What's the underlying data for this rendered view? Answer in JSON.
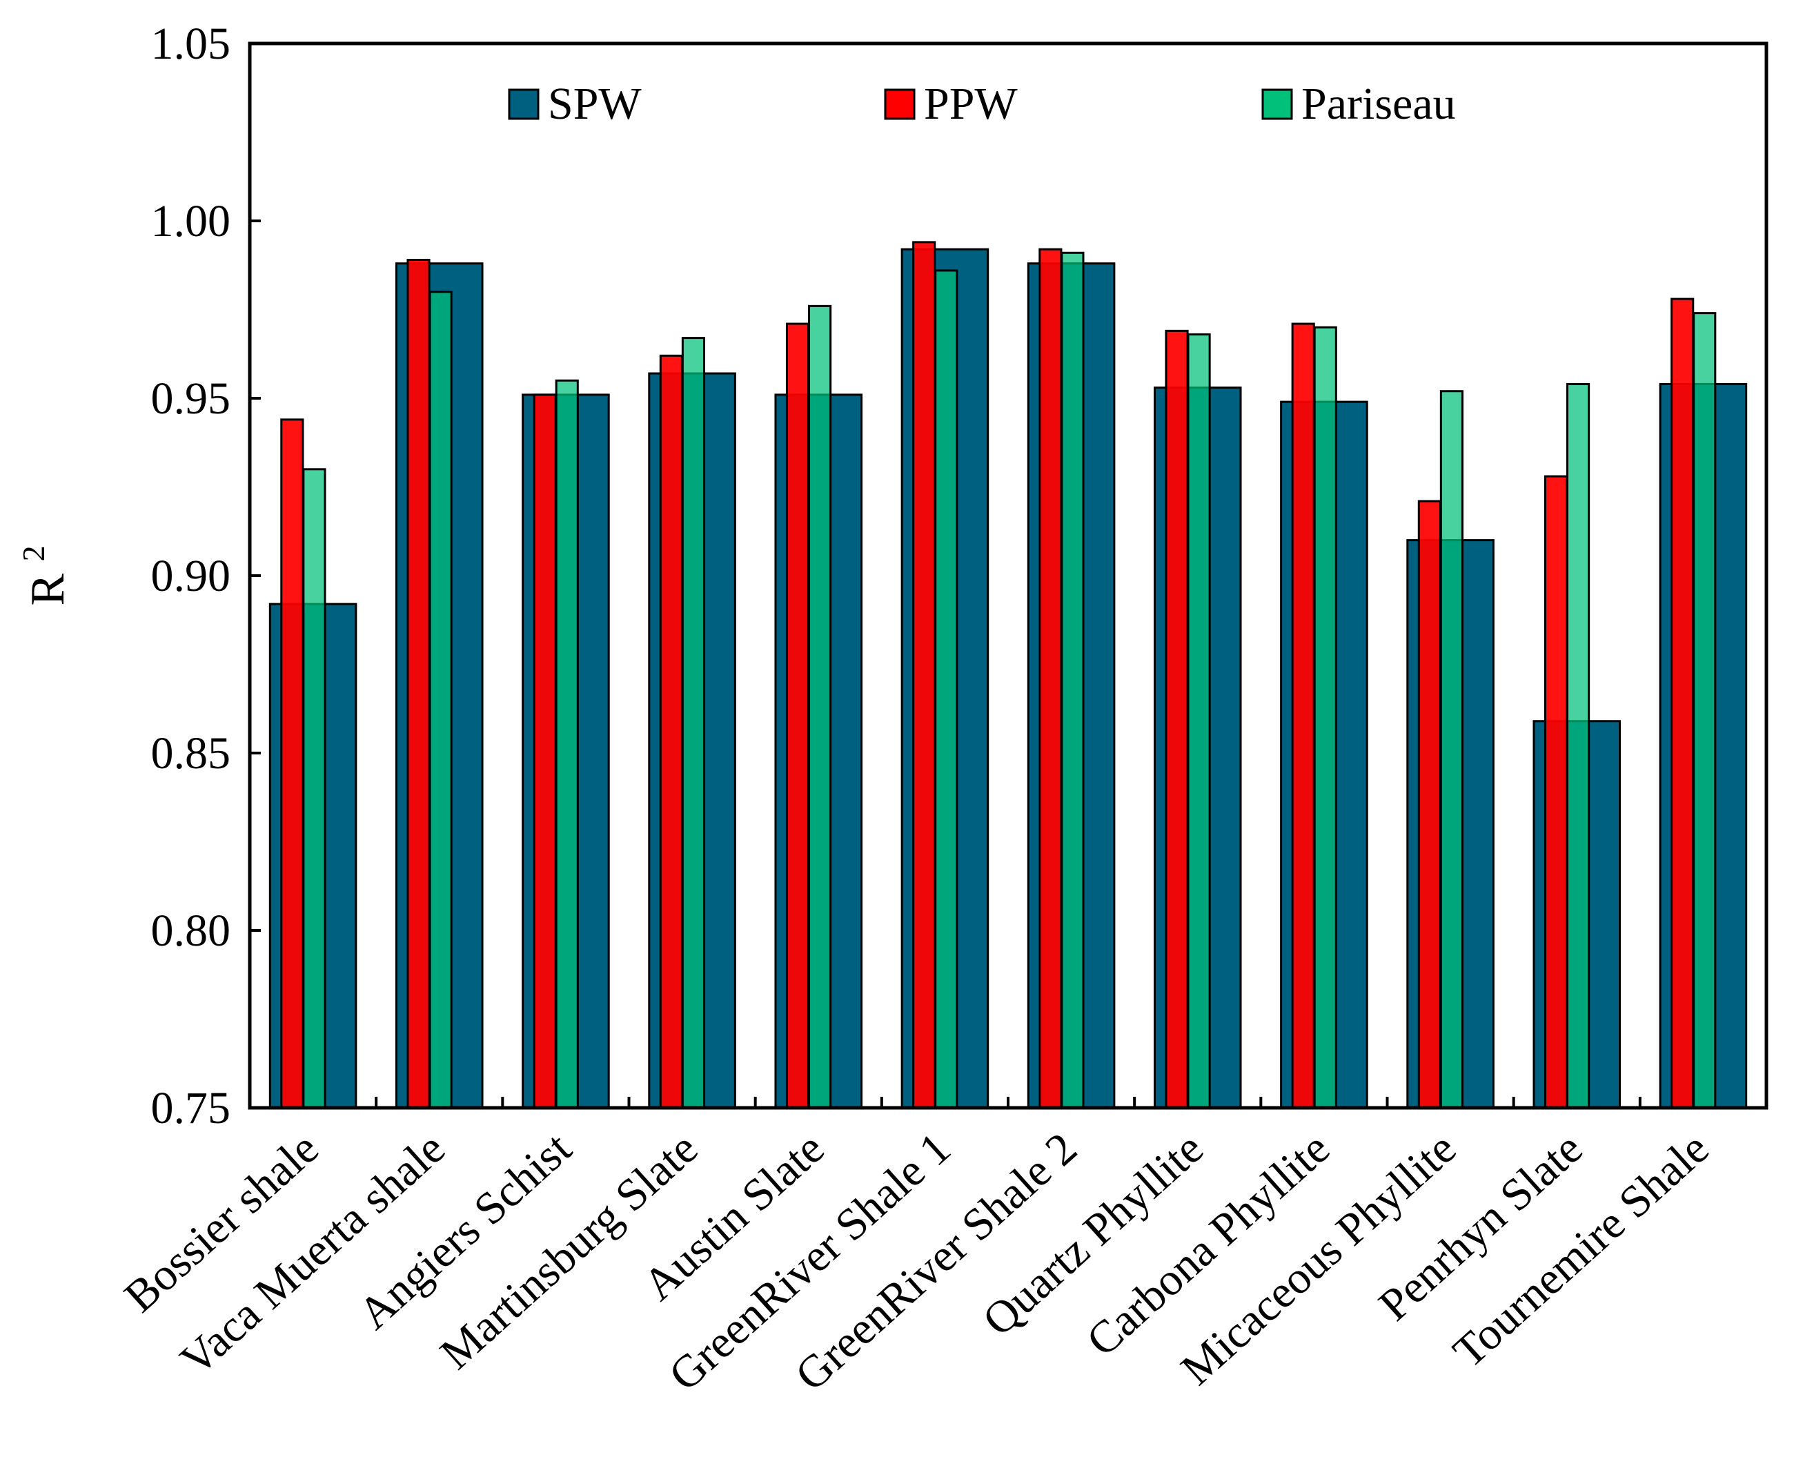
{
  "chart_data": {
    "type": "bar",
    "title": "",
    "xlabel": "",
    "ylabel": "R",
    "ylabel_superscript": "2",
    "ylim": [
      0.75,
      1.05
    ],
    "yticks": [
      "0.75",
      "0.80",
      "0.85",
      "0.90",
      "0.95",
      "1.00",
      "1.05"
    ],
    "grid": false,
    "legend_position": "top",
    "categories": [
      "Bossier shale",
      "Vaca Muerta shale",
      "Angiers Schist",
      "Martinsburg Slate",
      "Austin Slate",
      "GreenRiver Shale 1",
      "GreenRiver Shale 2",
      "Quartz Phyllite",
      "Carbona Phyllite",
      "Micaceous Phyllite",
      "Penrhyn Slate",
      "Tournemire Shale"
    ],
    "series": [
      {
        "name": "SPW",
        "color": "#00607f",
        "values": [
          0.892,
          0.988,
          0.951,
          0.957,
          0.951,
          0.992,
          0.988,
          0.953,
          0.949,
          0.91,
          0.859,
          0.954
        ]
      },
      {
        "name": "PPW",
        "color": "#ff0000",
        "values": [
          0.944,
          0.989,
          0.951,
          0.962,
          0.971,
          0.994,
          0.992,
          0.969,
          0.971,
          0.921,
          0.928,
          0.978
        ]
      },
      {
        "name": "Pariseau",
        "color": "#00c07a",
        "values": [
          0.93,
          0.98,
          0.955,
          0.967,
          0.976,
          0.986,
          0.991,
          0.968,
          0.97,
          0.952,
          0.954,
          0.974
        ]
      }
    ]
  }
}
